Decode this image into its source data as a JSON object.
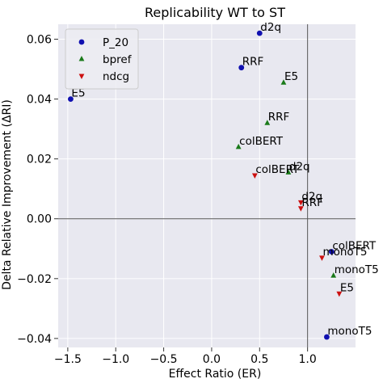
{
  "chart_data": {
    "type": "scatter",
    "title": "Replicability WT to ST",
    "xlabel": "Effect Ratio (ER)",
    "ylabel": "Delta Relative Improvement (ΔRI)",
    "xlim": [
      -1.6,
      1.5
    ],
    "ylim": [
      -0.043,
      0.065
    ],
    "xticks": [
      -1.5,
      -1.0,
      -0.5,
      0.0,
      0.5,
      1.0
    ],
    "xtick_labels": [
      "−1.5",
      "−1.0",
      "−0.5",
      "0.0",
      "0.5",
      "1.0"
    ],
    "yticks": [
      -0.04,
      -0.02,
      0.0,
      0.02,
      0.04,
      0.06
    ],
    "ytick_labels": [
      "−0.04",
      "−0.02",
      "0.00",
      "0.02",
      "0.04",
      "0.06"
    ],
    "grid": true,
    "background": "#e8e8f0",
    "reference_lines": {
      "x": 1.0,
      "y": 0.0
    },
    "legend_position": "upper-left",
    "series": [
      {
        "name": "P_20",
        "marker": "circle",
        "color": "#1010b0",
        "points": [
          {
            "x": 0.5,
            "y": 0.062,
            "label": "d2q"
          },
          {
            "x": 0.31,
            "y": 0.0505,
            "label": "RRF"
          },
          {
            "x": -1.47,
            "y": 0.04,
            "label": "E5"
          },
          {
            "x": 1.25,
            "y": -0.011,
            "label": "colBERT"
          },
          {
            "x": 1.2,
            "y": -0.0395,
            "label": "monoT5"
          }
        ]
      },
      {
        "name": "bpref",
        "marker": "triangle-up",
        "color": "#1a7a1a",
        "points": [
          {
            "x": 0.75,
            "y": 0.0455,
            "label": "E5"
          },
          {
            "x": 0.58,
            "y": 0.032,
            "label": "RRF"
          },
          {
            "x": 0.28,
            "y": 0.024,
            "label": "colBERT"
          },
          {
            "x": 0.8,
            "y": 0.0155,
            "label": "d2q"
          },
          {
            "x": 1.27,
            "y": -0.019,
            "label": "monoT5"
          }
        ]
      },
      {
        "name": "ndcg",
        "marker": "triangle-down",
        "color": "#cc1010",
        "points": [
          {
            "x": 0.45,
            "y": 0.0145,
            "label": "colBERT"
          },
          {
            "x": 0.93,
            "y": 0.0055,
            "label": "d2q"
          },
          {
            "x": 0.93,
            "y": 0.0035,
            "label": "RRF"
          },
          {
            "x": 1.15,
            "y": -0.013,
            "label": "monoT5"
          },
          {
            "x": 1.33,
            "y": -0.025,
            "label": "E5"
          }
        ]
      }
    ]
  }
}
